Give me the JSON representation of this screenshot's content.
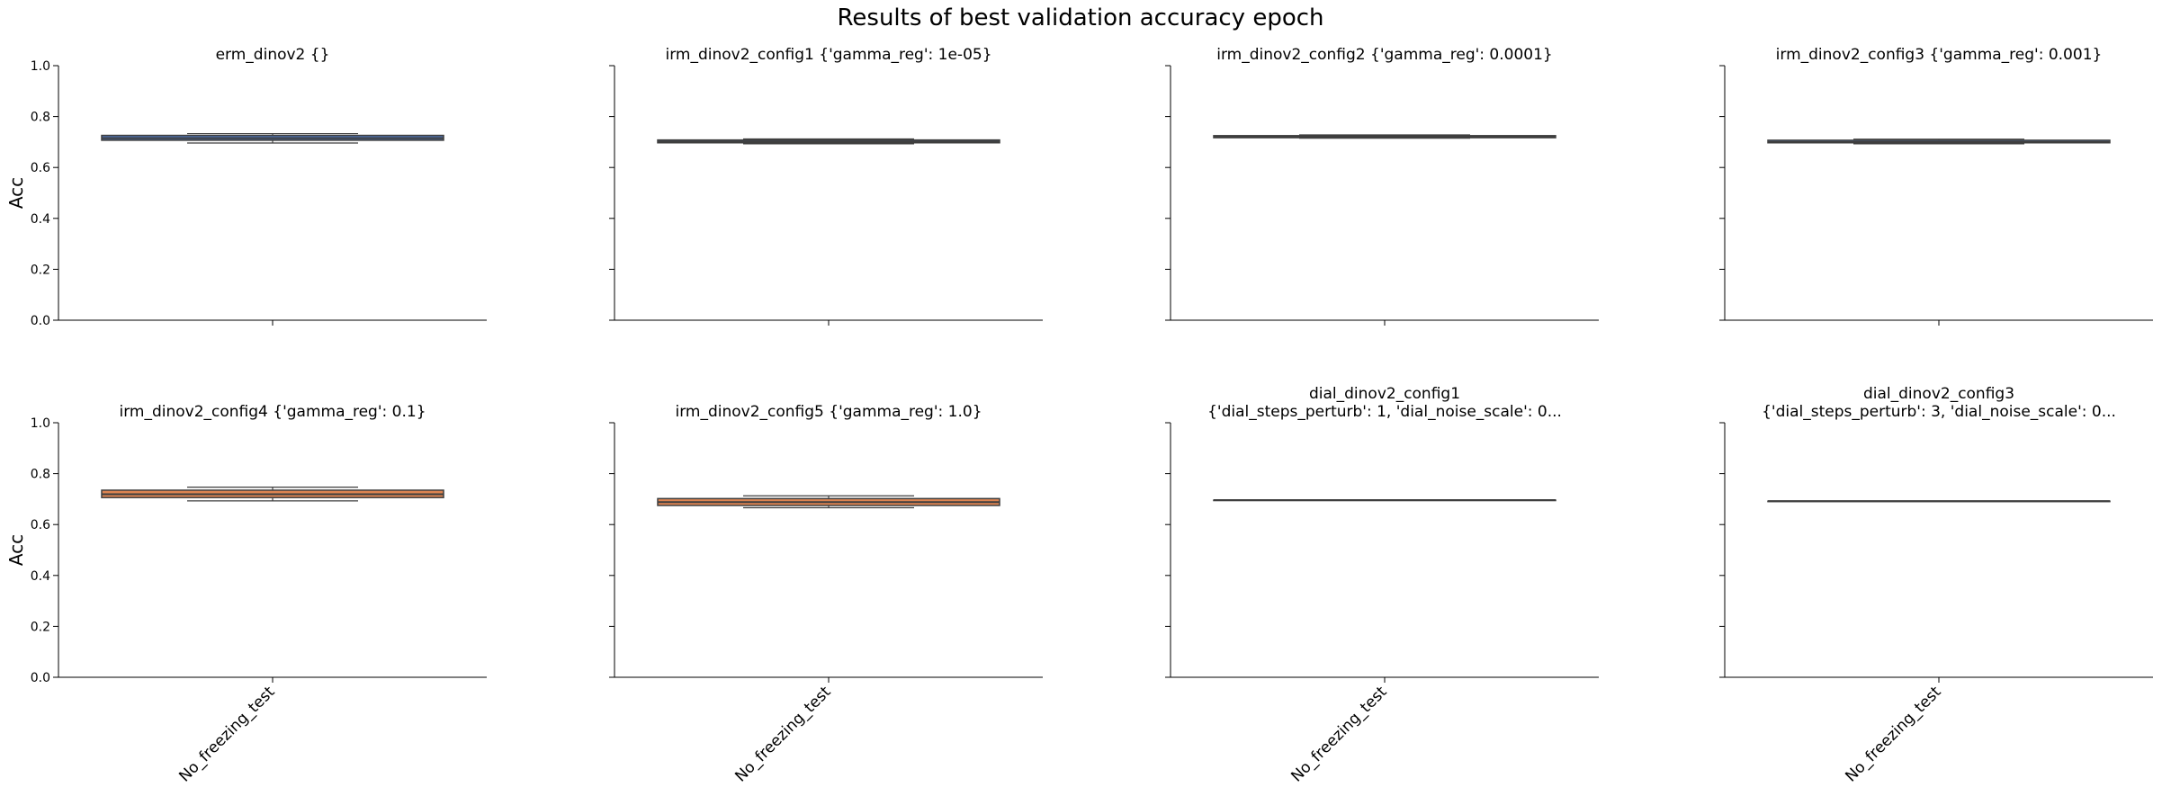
{
  "title": "Results of best validation accuracy epoch",
  "chart_data": {
    "type": "box",
    "title": "Results of best validation accuracy epoch",
    "ylabel": "Acc",
    "ylim": [
      0,
      1
    ],
    "yticks": [
      "0.0",
      "0.2",
      "0.4",
      "0.6",
      "0.8",
      "1.0"
    ],
    "category": "No_freezing_test",
    "grid": false,
    "panels": [
      {
        "title_lines": [
          "erm_dinov2        {}"
        ],
        "color": "#4c72b0",
        "stats": {
          "whislo": 0.696,
          "q1": 0.707,
          "median": 0.715,
          "q3": 0.726,
          "whishi": 0.733
        }
      },
      {
        "title_lines": [
          "irm_dinov2_config1 {'gamma_reg': 1e-05}"
        ],
        "color": "#4c72b0",
        "stats": {
          "whislo": 0.693,
          "q1": 0.697,
          "median": 0.702,
          "q3": 0.708,
          "whishi": 0.712
        }
      },
      {
        "title_lines": [
          "irm_dinov2_config2 {'gamma_reg': 0.0001}"
        ],
        "color": "#4c72b0",
        "stats": {
          "whislo": 0.715,
          "q1": 0.717,
          "median": 0.72,
          "q3": 0.725,
          "whishi": 0.728
        }
      },
      {
        "title_lines": [
          "irm_dinov2_config3 {'gamma_reg': 0.001}"
        ],
        "color": "#4c72b0",
        "stats": {
          "whislo": 0.693,
          "q1": 0.697,
          "median": 0.7,
          "q3": 0.707,
          "whishi": 0.711
        }
      },
      {
        "title_lines": [
          "irm_dinov2_config4 {'gamma_reg': 0.1}"
        ],
        "color": "#dd8452",
        "stats": {
          "whislo": 0.693,
          "q1": 0.706,
          "median": 0.719,
          "q3": 0.735,
          "whishi": 0.747
        }
      },
      {
        "title_lines": [
          "irm_dinov2_config5 {'gamma_reg': 1.0}"
        ],
        "color": "#dd8452",
        "stats": {
          "whislo": 0.666,
          "q1": 0.675,
          "median": 0.688,
          "q3": 0.702,
          "whishi": 0.713
        }
      },
      {
        "title_lines": [
          "dial_dinov2_config1",
          "{'dial_steps_perturb': 1, 'dial_noise_scale': 0..."
        ],
        "color": "#55a868",
        "stats": {
          "whislo": 0.696,
          "q1": 0.696,
          "median": 0.696,
          "q3": 0.696,
          "whishi": 0.696
        }
      },
      {
        "title_lines": [
          "dial_dinov2_config3",
          "{'dial_steps_perturb': 3, 'dial_noise_scale': 0..."
        ],
        "color": "#55a868",
        "stats": {
          "whislo": 0.692,
          "q1": 0.692,
          "median": 0.692,
          "q3": 0.692,
          "whishi": 0.692
        }
      }
    ]
  }
}
